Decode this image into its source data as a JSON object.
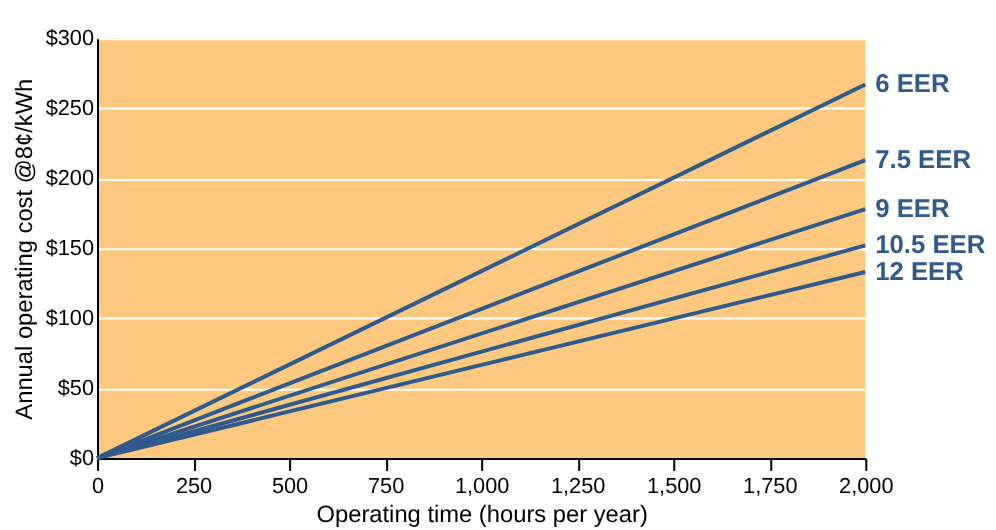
{
  "chart_data": {
    "type": "line",
    "xlabel": "Operating time (hours per year)",
    "ylabel": "Annual operating cost @8¢/kWh",
    "x": [
      0,
      2000
    ],
    "series": [
      {
        "name": "6 EER",
        "color": "#2e5a8c",
        "values": [
          0,
          267
        ]
      },
      {
        "name": "7.5 EER",
        "color": "#2e5a8c",
        "values": [
          0,
          213
        ]
      },
      {
        "name": "9 EER",
        "color": "#2e5a8c",
        "values": [
          0,
          178
        ]
      },
      {
        "name": "10.5 EER",
        "color": "#2e5a8c",
        "values": [
          0,
          152
        ]
      },
      {
        "name": "12 EER",
        "color": "#2e5a8c",
        "values": [
          0,
          133
        ]
      }
    ],
    "xlim": [
      0,
      2000
    ],
    "ylim": [
      0,
      300
    ],
    "xticks": [
      0,
      250,
      500,
      750,
      {
        "value": 1000,
        "label": "1,000"
      },
      {
        "value": 1250,
        "label": "1,250"
      },
      {
        "value": 1500,
        "label": "1,500"
      },
      {
        "value": 1750,
        "label": "1,750"
      },
      {
        "value": 2000,
        "label": "2,000"
      }
    ],
    "yticks": [
      {
        "value": 0,
        "label": "$0"
      },
      {
        "value": 50,
        "label": "$50"
      },
      {
        "value": 100,
        "label": "$100"
      },
      {
        "value": 150,
        "label": "$150"
      },
      {
        "value": 200,
        "label": "$200"
      },
      {
        "value": 250,
        "label": "$250"
      },
      {
        "value": 300,
        "label": "$300"
      }
    ],
    "grid": "y",
    "legend": false,
    "marker": "none",
    "line_style": "solid"
  }
}
